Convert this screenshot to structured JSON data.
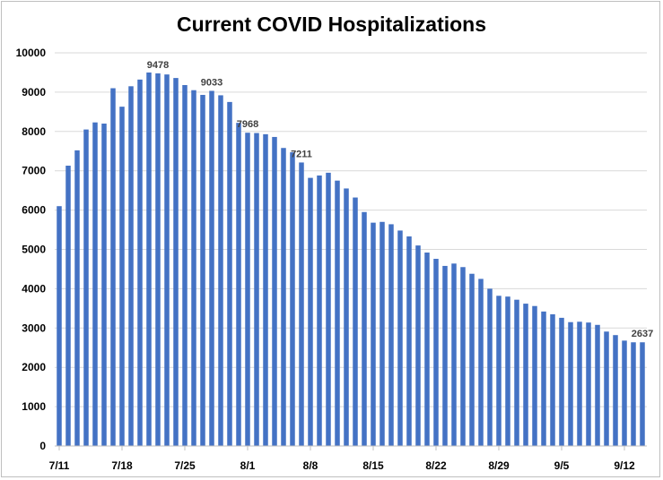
{
  "chart_data": {
    "type": "bar",
    "title": "Current COVID Hospitalizations",
    "xlabel": "",
    "ylabel": "",
    "ylim": [
      0,
      10000
    ],
    "yticks": [
      0,
      1000,
      2000,
      3000,
      4000,
      5000,
      6000,
      7000,
      8000,
      9000,
      10000
    ],
    "grid": true,
    "legend": "none",
    "bar_color": "#4472c4",
    "x_tick_labels": [
      {
        "label": "7/11",
        "index": 0
      },
      {
        "label": "7/18",
        "index": 7
      },
      {
        "label": "7/25",
        "index": 14
      },
      {
        "label": "8/1",
        "index": 21
      },
      {
        "label": "8/8",
        "index": 28
      },
      {
        "label": "8/15",
        "index": 35
      },
      {
        "label": "8/22",
        "index": 42
      },
      {
        "label": "8/29",
        "index": 49
      },
      {
        "label": "9/5",
        "index": 56
      },
      {
        "label": "9/12",
        "index": 63
      }
    ],
    "values": [
      6100,
      7130,
      7520,
      8050,
      8230,
      8200,
      9100,
      8630,
      9150,
      9320,
      9500,
      9478,
      9450,
      9360,
      9180,
      9050,
      8930,
      9033,
      8920,
      8750,
      8220,
      7968,
      7960,
      7930,
      7860,
      7580,
      7470,
      7211,
      6820,
      6880,
      6950,
      6750,
      6550,
      6320,
      5950,
      5680,
      5700,
      5640,
      5480,
      5330,
      5100,
      4920,
      4760,
      4580,
      4640,
      4550,
      4380,
      4250,
      4000,
      3820,
      3800,
      3720,
      3620,
      3560,
      3420,
      3350,
      3260,
      3150,
      3160,
      3140,
      3080,
      2910,
      2820,
      2680,
      2637,
      2637
    ],
    "data_labels": [
      {
        "index": 11,
        "text": "9478"
      },
      {
        "index": 17,
        "text": "9033"
      },
      {
        "index": 21,
        "text": "7968"
      },
      {
        "index": 27,
        "text": "7211"
      },
      {
        "index": 65,
        "text": "2637"
      }
    ]
  }
}
